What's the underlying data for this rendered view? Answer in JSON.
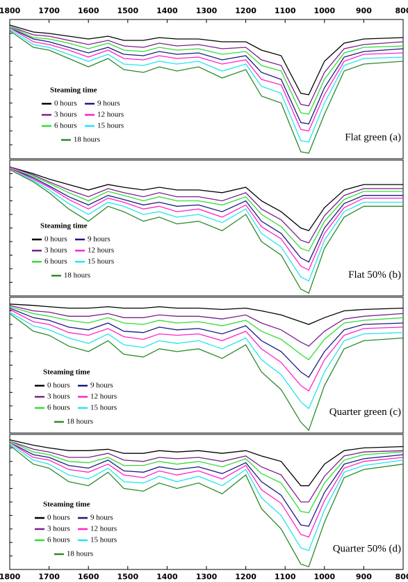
{
  "chart_data": [
    {
      "type": "line",
      "title": "Flat green (a)",
      "legend_title": "Steaming time",
      "x": [
        1800,
        1740,
        1700,
        1650,
        1600,
        1550,
        1510,
        1460,
        1420,
        1375,
        1320,
        1260,
        1200,
        1160,
        1110,
        1060,
        1040,
        1000,
        950,
        900,
        800
      ],
      "xlim": [
        1800,
        800
      ],
      "ylim": [
        0,
        1
      ],
      "xticks": [
        1800,
        1700,
        1600,
        1500,
        1400,
        1300,
        1200,
        1100,
        1000,
        900,
        800
      ],
      "xticks_side": "top",
      "series": [
        {
          "name": "0 hours",
          "color": "#000000",
          "values": [
            0.96,
            0.91,
            0.9,
            0.88,
            0.86,
            0.88,
            0.85,
            0.85,
            0.87,
            0.86,
            0.86,
            0.84,
            0.84,
            0.78,
            0.74,
            0.47,
            0.46,
            0.7,
            0.83,
            0.86,
            0.87
          ]
        },
        {
          "name": "3 hours",
          "color": "#7a1f8c",
          "values": [
            0.95,
            0.89,
            0.88,
            0.85,
            0.82,
            0.85,
            0.81,
            0.8,
            0.83,
            0.81,
            0.82,
            0.79,
            0.8,
            0.71,
            0.67,
            0.39,
            0.38,
            0.62,
            0.79,
            0.82,
            0.84
          ]
        },
        {
          "name": "6 hours",
          "color": "#33dd33",
          "values": [
            0.95,
            0.87,
            0.86,
            0.83,
            0.79,
            0.83,
            0.78,
            0.77,
            0.8,
            0.78,
            0.79,
            0.75,
            0.77,
            0.67,
            0.63,
            0.33,
            0.32,
            0.57,
            0.76,
            0.8,
            0.81
          ]
        },
        {
          "name": "9 hours",
          "color": "#1a1a80",
          "values": [
            0.94,
            0.86,
            0.84,
            0.8,
            0.76,
            0.8,
            0.75,
            0.74,
            0.77,
            0.75,
            0.76,
            0.71,
            0.74,
            0.62,
            0.57,
            0.26,
            0.25,
            0.51,
            0.73,
            0.77,
            0.79
          ]
        },
        {
          "name": "12 hours",
          "color": "#ff22cc",
          "values": [
            0.94,
            0.84,
            0.82,
            0.78,
            0.73,
            0.78,
            0.72,
            0.71,
            0.74,
            0.72,
            0.73,
            0.68,
            0.71,
            0.57,
            0.53,
            0.21,
            0.2,
            0.46,
            0.7,
            0.75,
            0.76
          ]
        },
        {
          "name": "15 hours",
          "color": "#22e5ee",
          "values": [
            0.93,
            0.82,
            0.8,
            0.75,
            0.7,
            0.75,
            0.68,
            0.67,
            0.7,
            0.68,
            0.7,
            0.63,
            0.68,
            0.52,
            0.47,
            0.13,
            0.12,
            0.4,
            0.67,
            0.72,
            0.73
          ]
        },
        {
          "name": "18 hours",
          "color": "#2a8a2a",
          "values": [
            0.92,
            0.8,
            0.78,
            0.72,
            0.66,
            0.72,
            0.64,
            0.62,
            0.66,
            0.63,
            0.66,
            0.58,
            0.64,
            0.45,
            0.4,
            0.05,
            0.04,
            0.32,
            0.63,
            0.68,
            0.7
          ]
        }
      ]
    },
    {
      "type": "line",
      "title": "Flat 50% (b)",
      "legend_title": "Steaming time",
      "x": [
        1800,
        1740,
        1700,
        1650,
        1600,
        1550,
        1510,
        1460,
        1420,
        1375,
        1320,
        1260,
        1200,
        1160,
        1110,
        1060,
        1040,
        1000,
        950,
        900,
        800
      ],
      "xlim": [
        1800,
        800
      ],
      "ylim": [
        0,
        1
      ],
      "series": [
        {
          "name": "0 hours",
          "color": "#000000",
          "values": [
            0.95,
            0.9,
            0.86,
            0.82,
            0.78,
            0.82,
            0.8,
            0.78,
            0.8,
            0.78,
            0.78,
            0.76,
            0.8,
            0.7,
            0.62,
            0.5,
            0.48,
            0.65,
            0.78,
            0.82,
            0.82
          ]
        },
        {
          "name": "3 hours",
          "color": "#7a1f8c",
          "values": [
            0.95,
            0.89,
            0.84,
            0.78,
            0.73,
            0.79,
            0.76,
            0.73,
            0.76,
            0.73,
            0.73,
            0.7,
            0.76,
            0.64,
            0.56,
            0.41,
            0.39,
            0.59,
            0.74,
            0.79,
            0.79
          ]
        },
        {
          "name": "6 hours",
          "color": "#33dd33",
          "values": [
            0.94,
            0.88,
            0.83,
            0.76,
            0.7,
            0.77,
            0.74,
            0.7,
            0.73,
            0.7,
            0.7,
            0.67,
            0.73,
            0.6,
            0.51,
            0.35,
            0.33,
            0.55,
            0.71,
            0.77,
            0.77
          ]
        },
        {
          "name": "9 hours",
          "color": "#1a1a80",
          "values": [
            0.94,
            0.87,
            0.81,
            0.73,
            0.67,
            0.74,
            0.71,
            0.67,
            0.69,
            0.66,
            0.67,
            0.62,
            0.7,
            0.55,
            0.46,
            0.28,
            0.25,
            0.5,
            0.68,
            0.74,
            0.74
          ]
        },
        {
          "name": "12 hours",
          "color": "#ff22cc",
          "values": [
            0.94,
            0.86,
            0.8,
            0.71,
            0.64,
            0.72,
            0.69,
            0.64,
            0.66,
            0.62,
            0.64,
            0.58,
            0.67,
            0.51,
            0.42,
            0.22,
            0.19,
            0.46,
            0.65,
            0.72,
            0.72
          ]
        },
        {
          "name": "15 hours",
          "color": "#22e5ee",
          "values": [
            0.93,
            0.85,
            0.78,
            0.68,
            0.6,
            0.69,
            0.66,
            0.6,
            0.62,
            0.58,
            0.6,
            0.54,
            0.64,
            0.46,
            0.36,
            0.14,
            0.11,
            0.41,
            0.62,
            0.69,
            0.69
          ]
        },
        {
          "name": "18 hours",
          "color": "#2a8a2a",
          "values": [
            0.93,
            0.84,
            0.76,
            0.64,
            0.55,
            0.66,
            0.62,
            0.55,
            0.58,
            0.53,
            0.55,
            0.48,
            0.6,
            0.4,
            0.3,
            0.05,
            0.02,
            0.35,
            0.58,
            0.66,
            0.66
          ]
        }
      ]
    },
    {
      "type": "line",
      "title": "Quarter green (c)",
      "legend_title": "Steaming time",
      "x": [
        1800,
        1740,
        1700,
        1650,
        1600,
        1550,
        1510,
        1460,
        1420,
        1375,
        1320,
        1260,
        1200,
        1160,
        1110,
        1060,
        1040,
        1000,
        950,
        900,
        800
      ],
      "xlim": [
        1800,
        800
      ],
      "ylim": [
        0,
        1
      ],
      "series": [
        {
          "name": "0 hours",
          "color": "#000000",
          "values": [
            0.95,
            0.94,
            0.93,
            0.92,
            0.92,
            0.93,
            0.92,
            0.92,
            0.93,
            0.92,
            0.92,
            0.91,
            0.92,
            0.9,
            0.87,
            0.82,
            0.8,
            0.85,
            0.9,
            0.91,
            0.92
          ]
        },
        {
          "name": "3 hours",
          "color": "#7a1f8c",
          "values": [
            0.94,
            0.9,
            0.89,
            0.86,
            0.86,
            0.88,
            0.85,
            0.85,
            0.87,
            0.86,
            0.86,
            0.84,
            0.87,
            0.81,
            0.76,
            0.67,
            0.64,
            0.75,
            0.84,
            0.86,
            0.88
          ]
        },
        {
          "name": "6 hours",
          "color": "#33dd33",
          "values": [
            0.93,
            0.88,
            0.86,
            0.83,
            0.81,
            0.85,
            0.81,
            0.8,
            0.83,
            0.81,
            0.82,
            0.79,
            0.83,
            0.75,
            0.69,
            0.58,
            0.54,
            0.69,
            0.81,
            0.83,
            0.85
          ]
        },
        {
          "name": "9 hours",
          "color": "#1a1a80",
          "values": [
            0.92,
            0.85,
            0.83,
            0.78,
            0.76,
            0.81,
            0.75,
            0.74,
            0.78,
            0.76,
            0.77,
            0.73,
            0.79,
            0.68,
            0.6,
            0.45,
            0.41,
            0.6,
            0.76,
            0.8,
            0.81
          ]
        },
        {
          "name": "12 hours",
          "color": "#ff22cc",
          "values": [
            0.91,
            0.82,
            0.8,
            0.74,
            0.72,
            0.77,
            0.71,
            0.69,
            0.73,
            0.72,
            0.73,
            0.68,
            0.75,
            0.62,
            0.52,
            0.35,
            0.31,
            0.54,
            0.72,
            0.77,
            0.78
          ]
        },
        {
          "name": "15 hours",
          "color": "#22e5ee",
          "values": [
            0.89,
            0.79,
            0.76,
            0.7,
            0.66,
            0.73,
            0.65,
            0.63,
            0.68,
            0.66,
            0.68,
            0.62,
            0.7,
            0.54,
            0.43,
            0.23,
            0.18,
            0.45,
            0.68,
            0.73,
            0.74
          ]
        },
        {
          "name": "18 hours",
          "color": "#2a8a2a",
          "values": [
            0.88,
            0.75,
            0.72,
            0.64,
            0.6,
            0.68,
            0.58,
            0.56,
            0.62,
            0.6,
            0.62,
            0.55,
            0.65,
            0.45,
            0.32,
            0.08,
            0.02,
            0.35,
            0.62,
            0.68,
            0.7
          ]
        }
      ]
    },
    {
      "type": "line",
      "title": "Quarter 50% (d)",
      "legend_title": "Steaming time",
      "x": [
        1800,
        1740,
        1700,
        1650,
        1600,
        1550,
        1510,
        1460,
        1420,
        1375,
        1320,
        1260,
        1200,
        1160,
        1110,
        1060,
        1040,
        1000,
        950,
        900,
        800
      ],
      "xlim": [
        1800,
        800
      ],
      "ylim": [
        0,
        1
      ],
      "xticks": [
        1800,
        1700,
        1600,
        1500,
        1400,
        1300,
        1200,
        1100,
        1000,
        900,
        800
      ],
      "xticks_side": "bottom",
      "series": [
        {
          "name": "0 hours",
          "color": "#000000",
          "values": [
            0.96,
            0.92,
            0.9,
            0.88,
            0.88,
            0.89,
            0.86,
            0.86,
            0.88,
            0.87,
            0.88,
            0.86,
            0.88,
            0.84,
            0.8,
            0.62,
            0.62,
            0.78,
            0.88,
            0.9,
            0.91
          ]
        },
        {
          "name": "3 hours",
          "color": "#7a1f8c",
          "values": [
            0.95,
            0.89,
            0.87,
            0.83,
            0.83,
            0.86,
            0.81,
            0.8,
            0.83,
            0.82,
            0.83,
            0.8,
            0.84,
            0.76,
            0.7,
            0.5,
            0.5,
            0.69,
            0.84,
            0.87,
            0.88
          ]
        },
        {
          "name": "6 hours",
          "color": "#33dd33",
          "values": [
            0.95,
            0.87,
            0.85,
            0.8,
            0.79,
            0.83,
            0.77,
            0.77,
            0.8,
            0.78,
            0.8,
            0.76,
            0.82,
            0.71,
            0.64,
            0.43,
            0.42,
            0.64,
            0.81,
            0.85,
            0.87
          ]
        },
        {
          "name": "9 hours",
          "color": "#1a1a80",
          "values": [
            0.94,
            0.85,
            0.83,
            0.77,
            0.75,
            0.81,
            0.73,
            0.72,
            0.76,
            0.74,
            0.76,
            0.71,
            0.79,
            0.65,
            0.55,
            0.33,
            0.32,
            0.57,
            0.78,
            0.82,
            0.85
          ]
        },
        {
          "name": "12 hours",
          "color": "#ff22cc",
          "values": [
            0.94,
            0.83,
            0.81,
            0.74,
            0.72,
            0.78,
            0.7,
            0.68,
            0.73,
            0.7,
            0.73,
            0.67,
            0.77,
            0.59,
            0.49,
            0.26,
            0.24,
            0.51,
            0.75,
            0.8,
            0.83
          ]
        },
        {
          "name": "15 hours",
          "color": "#22e5ee",
          "values": [
            0.93,
            0.81,
            0.78,
            0.7,
            0.67,
            0.75,
            0.65,
            0.64,
            0.69,
            0.65,
            0.69,
            0.62,
            0.74,
            0.53,
            0.4,
            0.16,
            0.14,
            0.44,
            0.72,
            0.77,
            0.81
          ]
        },
        {
          "name": "18 hours",
          "color": "#2a8a2a",
          "values": [
            0.92,
            0.78,
            0.75,
            0.65,
            0.62,
            0.72,
            0.6,
            0.58,
            0.64,
            0.6,
            0.64,
            0.56,
            0.7,
            0.45,
            0.3,
            0.04,
            0.02,
            0.35,
            0.68,
            0.74,
            0.78
          ]
        }
      ]
    }
  ]
}
